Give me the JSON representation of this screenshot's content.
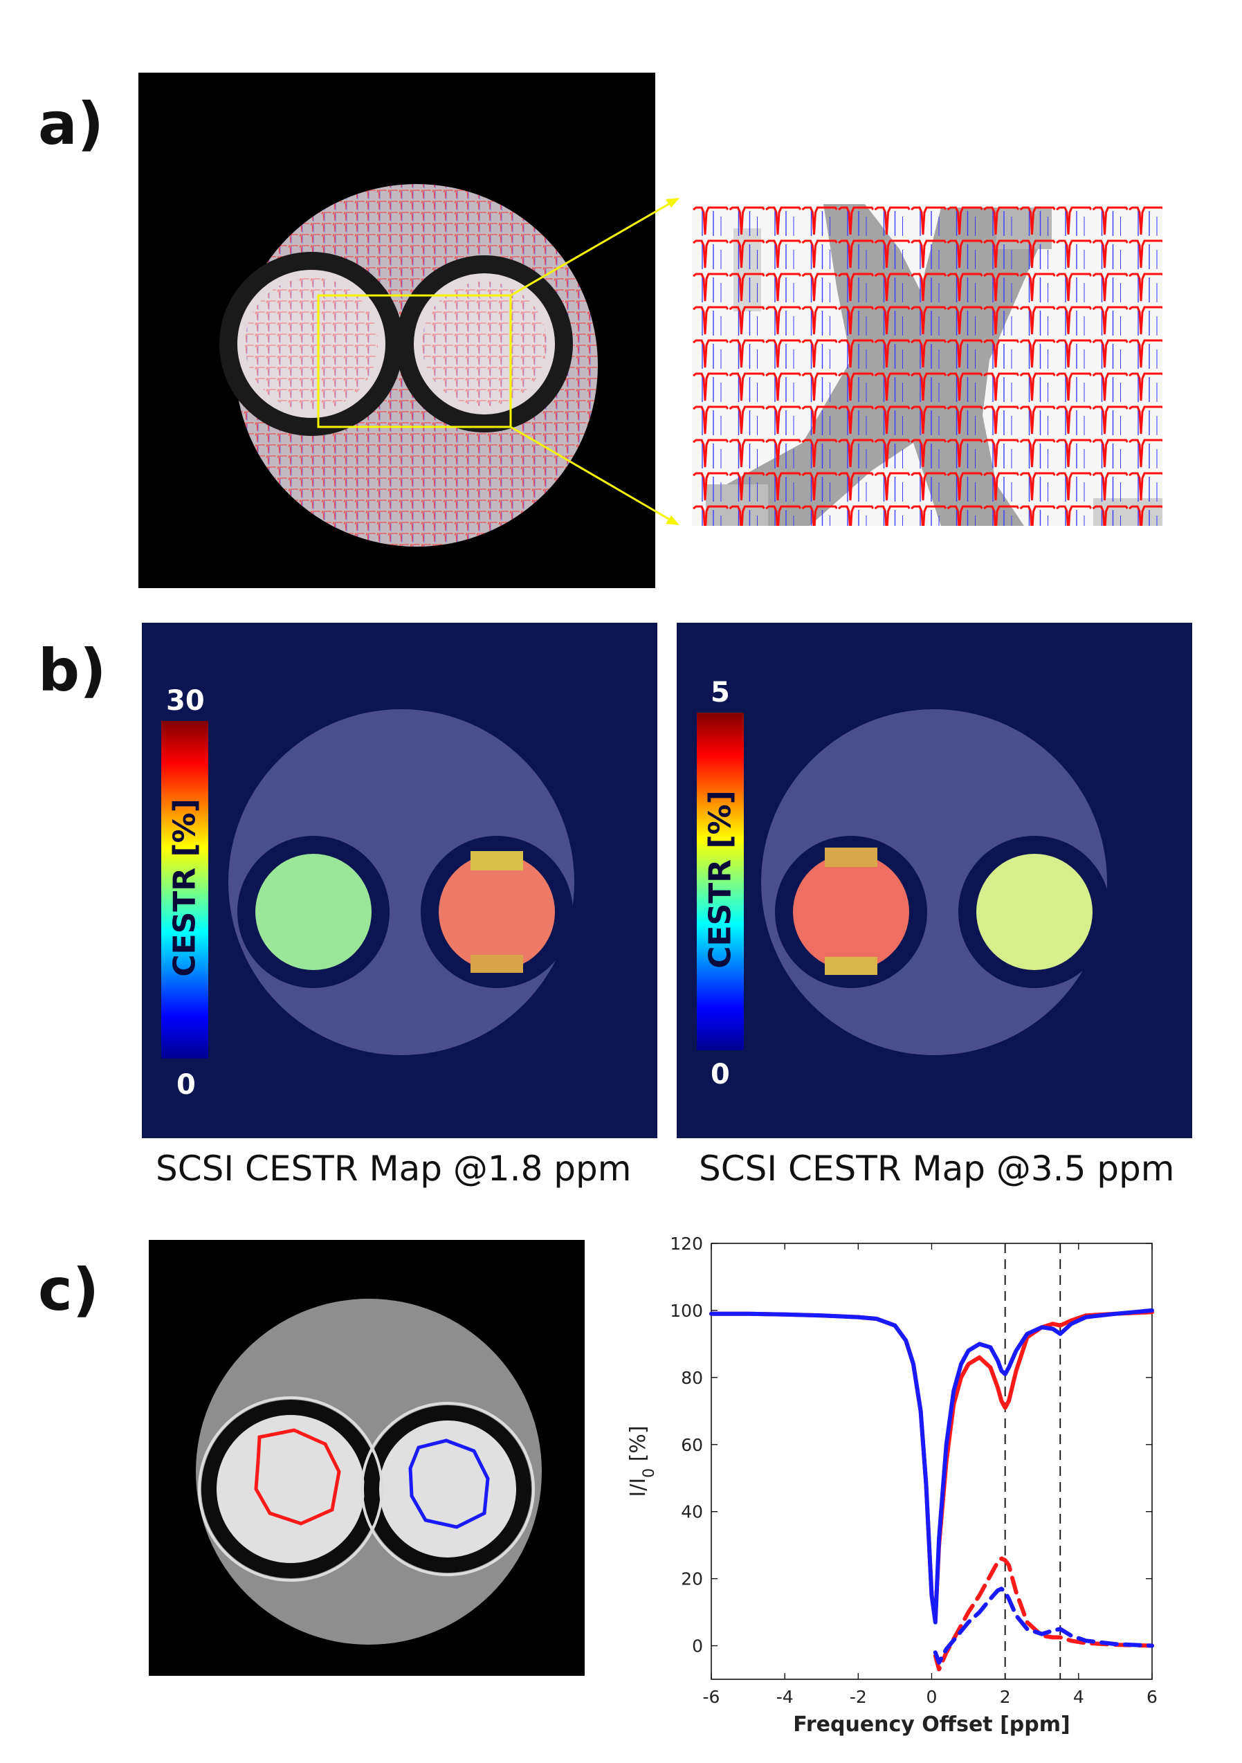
{
  "panel_labels": {
    "a": "a)",
    "b": "b)",
    "c": "c)"
  },
  "colors": {
    "spectrum_red": "#ff1a1a",
    "spectrum_blue": "#1a1aff",
    "zoom_box": "#f5f500",
    "map_background": "#0b1552",
    "phantom_gray": "#4a4e8a"
  },
  "panel_b": {
    "map_left": {
      "caption": "SCSI CESTR Map @1.8 ppm",
      "colorbar_max": "30",
      "colorbar_min": "0",
      "colorbar_label": "CESTR [%]",
      "left_tube_cestr_percent": 14,
      "right_tube_cestr_percent": 26
    },
    "map_right": {
      "caption": "SCSI CESTR Map @3.5 ppm",
      "colorbar_max": "5",
      "colorbar_min": "0",
      "colorbar_label": "CESTR [%]",
      "left_tube_cestr_percent": 4.4,
      "right_tube_cestr_percent": 2.4
    }
  },
  "chart_data": {
    "type": "line",
    "title": "",
    "xlabel": "Frequency Offset [ppm]",
    "ylabel": "I/I0 [%]",
    "ylabel_main": "I/I",
    "ylabel_sub": "0",
    "ylabel_unit": " [%]",
    "xlim": [
      -6,
      6
    ],
    "ylim": [
      -10,
      120
    ],
    "xticks": [
      -6,
      -4,
      -2,
      0,
      2,
      4,
      6
    ],
    "yticks": [
      0,
      20,
      40,
      60,
      80,
      100,
      120
    ],
    "vertical_dashed_lines": [
      2,
      3.5
    ],
    "series": [
      {
        "name": "red ROI z-spectrum",
        "color": "#ff1a1a",
        "style": "solid",
        "x": [
          -6,
          -5,
          -4,
          -3,
          -2,
          -1.5,
          -1,
          -0.7,
          -0.5,
          -0.3,
          -0.15,
          0,
          0.1,
          0.2,
          0.4,
          0.6,
          0.8,
          1.0,
          1.3,
          1.6,
          1.8,
          1.9,
          2.0,
          2.1,
          2.3,
          2.6,
          3.0,
          3.3,
          3.5,
          3.8,
          4.2,
          5,
          6
        ],
        "y": [
          99,
          99,
          98.8,
          98.5,
          98,
          97.5,
          95.5,
          91,
          84,
          70,
          48,
          15,
          8,
          30,
          55,
          72,
          80,
          84,
          86,
          83,
          77,
          73,
          71,
          73,
          82,
          92,
          95,
          96,
          95.5,
          97,
          98.5,
          99,
          99.5
        ]
      },
      {
        "name": "blue ROI z-spectrum",
        "color": "#1a1aff",
        "style": "solid",
        "x": [
          -6,
          -5,
          -4,
          -3,
          -2,
          -1.5,
          -1,
          -0.7,
          -0.5,
          -0.3,
          -0.15,
          0,
          0.1,
          0.2,
          0.4,
          0.6,
          0.8,
          1.0,
          1.3,
          1.6,
          1.8,
          1.9,
          2.0,
          2.1,
          2.3,
          2.6,
          3.0,
          3.3,
          3.5,
          3.8,
          4.2,
          5,
          6
        ],
        "y": [
          99,
          99,
          98.8,
          98.5,
          98,
          97.5,
          95.5,
          91,
          84,
          70,
          48,
          15,
          7,
          32,
          60,
          76,
          84,
          88,
          90,
          89,
          85,
          82,
          81,
          83,
          88,
          93,
          95,
          94.5,
          93,
          96,
          98,
          99,
          100
        ]
      },
      {
        "name": "red ROI CESTR",
        "color": "#ff1a1a",
        "style": "dashed",
        "x": [
          0.1,
          0.2,
          0.4,
          0.7,
          1.0,
          1.3,
          1.6,
          1.8,
          1.9,
          2.0,
          2.1,
          2.3,
          2.6,
          3.0,
          3.3,
          3.5,
          3.8,
          4.2,
          5,
          6
        ],
        "y": [
          -3,
          -7,
          -2,
          4,
          10,
          15,
          21,
          25,
          26,
          25.5,
          24,
          16,
          7,
          3,
          2.5,
          2.5,
          1.5,
          0.8,
          0.3,
          0
        ]
      },
      {
        "name": "blue ROI CESTR",
        "color": "#1a1aff",
        "style": "dashed",
        "x": [
          0.1,
          0.2,
          0.4,
          0.7,
          1.0,
          1.3,
          1.6,
          1.8,
          1.9,
          2.0,
          2.1,
          2.3,
          2.6,
          3.0,
          3.3,
          3.5,
          3.8,
          4.2,
          5,
          6
        ],
        "y": [
          -2,
          -5,
          -1,
          3,
          7,
          10,
          14,
          16.5,
          17,
          16,
          14,
          9,
          5,
          3.5,
          4.5,
          5,
          3,
          1.5,
          0.5,
          0
        ]
      }
    ]
  }
}
